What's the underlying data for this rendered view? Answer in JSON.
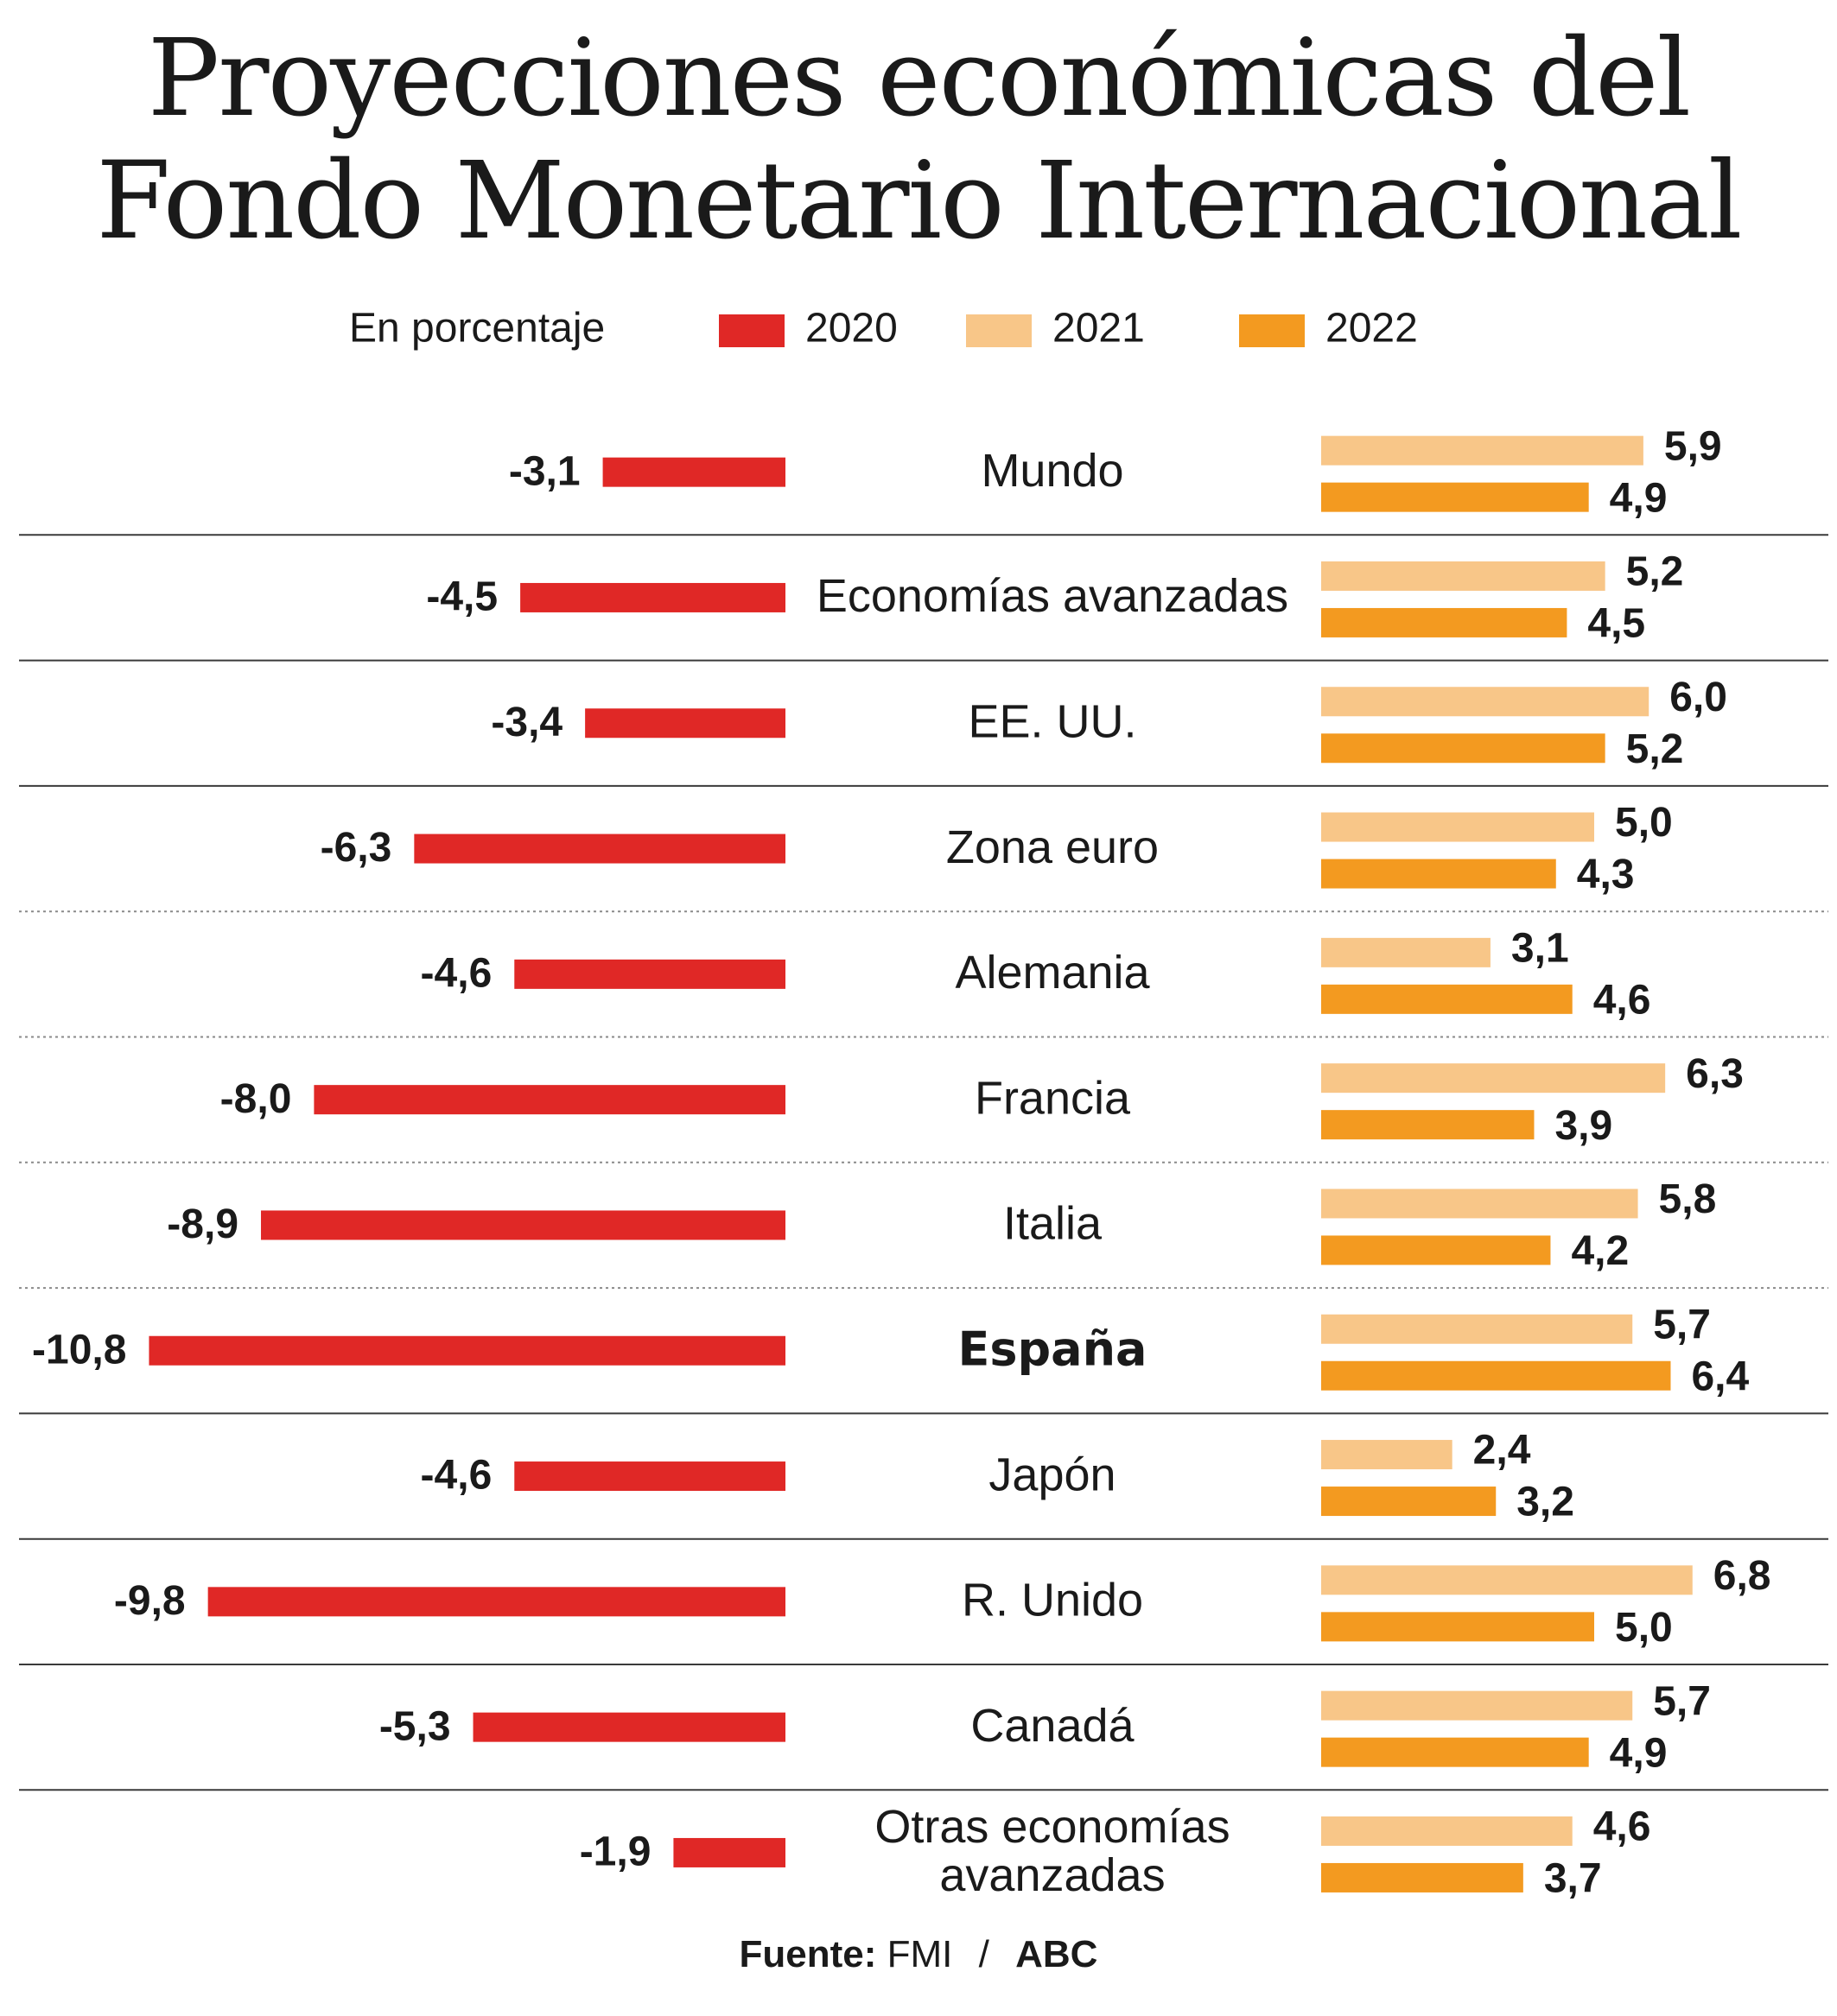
{
  "title_line1": "Proyecciones económicas del",
  "title_line2": "Fondo Monetario Internacional",
  "chart_data": {
    "type": "bar",
    "title": "Proyecciones económicas del Fondo Monetario Internacional",
    "unit_label": "En porcentaje",
    "categories": [
      "Mundo",
      "Economías avanzadas",
      "EE. UU.",
      "Zona euro",
      "Alemania",
      "Francia",
      "Italia",
      "España",
      "Japón",
      "R. Unido",
      "Canadá",
      "Otras economías avanzadas"
    ],
    "category_lines": [
      [
        "Mundo"
      ],
      [
        "Economías avanzadas"
      ],
      [
        "EE. UU."
      ],
      [
        "Zona euro"
      ],
      [
        "Alemania"
      ],
      [
        "Francia"
      ],
      [
        "Italia"
      ],
      [
        "España"
      ],
      [
        "Japón"
      ],
      [
        "R. Unido"
      ],
      [
        "Canadá"
      ],
      [
        "Otras economías",
        "avanzadas"
      ]
    ],
    "highlight": "España",
    "series": [
      {
        "name": "2020",
        "color": "#e02826",
        "values": [
          -3.1,
          -4.5,
          -3.4,
          -6.3,
          -4.6,
          -8.0,
          -8.9,
          -10.8,
          -4.6,
          -9.8,
          -5.3,
          -1.9
        ],
        "labels": [
          "-3,1",
          "-4,5",
          "-3,4",
          "-6,3",
          "-4,6",
          "-8,0",
          "-8,9",
          "-10,8",
          "-4,6",
          "-9,8",
          "-5,3",
          "-1,9"
        ]
      },
      {
        "name": "2021",
        "color": "#f8c688",
        "values": [
          5.9,
          5.2,
          6.0,
          5.0,
          3.1,
          6.3,
          5.8,
          5.7,
          2.4,
          6.8,
          5.7,
          4.6
        ],
        "labels": [
          "5,9",
          "5,2",
          "6,0",
          "5,0",
          "3,1",
          "6,3",
          "5,8",
          "5,7",
          "2,4",
          "6,8",
          "5,7",
          "4,6"
        ]
      },
      {
        "name": "2022",
        "color": "#f39a20",
        "values": [
          4.9,
          4.5,
          5.2,
          4.3,
          4.6,
          3.9,
          4.2,
          6.4,
          3.2,
          5.0,
          4.9,
          3.7
        ],
        "labels": [
          "4,9",
          "4,5",
          "5,2",
          "4,3",
          "4,6",
          "3,9",
          "4,2",
          "6,4",
          "3,2",
          "5,0",
          "4,9",
          "3,7"
        ]
      }
    ],
    "separators": [
      "solid",
      "solid",
      "solid",
      "dotted",
      "dotted",
      "dotted",
      "dotted",
      "solid",
      "solid",
      "solid",
      "solid"
    ]
  },
  "source": {
    "label": "Fuente:",
    "org": "FMI",
    "separator": "/",
    "publisher": "ABC"
  }
}
